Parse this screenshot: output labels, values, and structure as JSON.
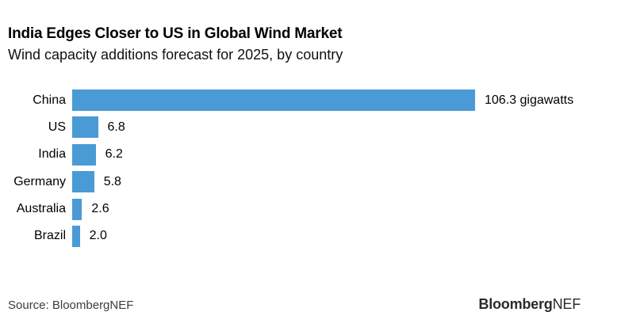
{
  "header": {
    "title": "India Edges Closer to US in Global Wind Market",
    "subtitle": "Wind capacity additions forecast for 2025, by country"
  },
  "chart_data": {
    "type": "bar",
    "orientation": "horizontal",
    "title": "India Edges Closer to US in Global Wind Market",
    "subtitle": "Wind capacity additions forecast for 2025, by country",
    "categories": [
      "China",
      "US",
      "India",
      "Germany",
      "Australia",
      "Brazil"
    ],
    "values": [
      106.3,
      6.8,
      6.2,
      5.8,
      2.6,
      2.0
    ],
    "value_labels": [
      "106.3 gigawatts",
      "6.8",
      "6.2",
      "5.8",
      "2.6",
      "2.0"
    ],
    "unit": "gigawatts",
    "xlim": [
      0,
      106.3
    ],
    "bar_color": "#4A9AD5",
    "grid": false,
    "legend": false
  },
  "footer": {
    "source": "Source: BloombergNEF",
    "logo_bloomberg": "Bloomberg",
    "logo_nef": "NEF"
  }
}
